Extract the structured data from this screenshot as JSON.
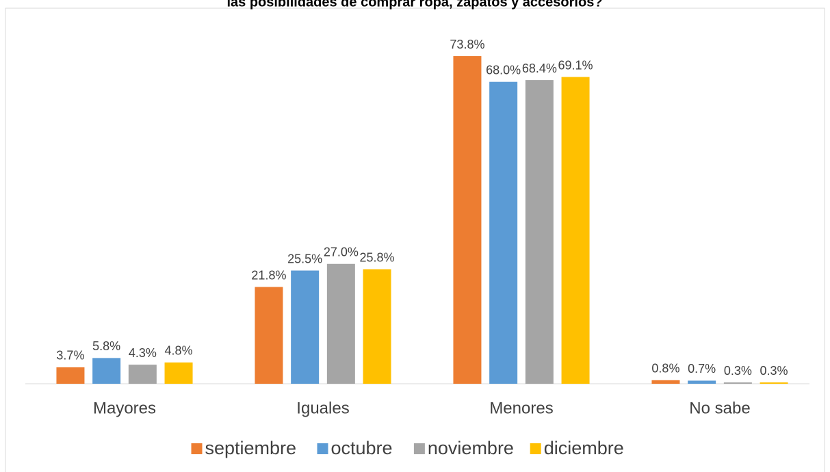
{
  "chart_data": {
    "type": "bar",
    "title": "las posibilidades de comprar ropa, zapatos y accesorios?",
    "categories": [
      "Mayores",
      "Iguales",
      "Menores",
      "No sabe"
    ],
    "series": [
      {
        "name": "septiembre",
        "color": "#ed7d31",
        "values": [
          3.7,
          21.8,
          73.8,
          0.8
        ],
        "value_labels": [
          "3.7%",
          "21.8%",
          "73.8%",
          "0.8%"
        ]
      },
      {
        "name": "octubre",
        "color": "#5b9bd5",
        "values": [
          5.8,
          25.5,
          68.0,
          0.7
        ],
        "value_labels": [
          "5.8%",
          "25.5%",
          "68.0%",
          "0.7%"
        ]
      },
      {
        "name": "noviembre",
        "color": "#a5a5a5",
        "values": [
          4.3,
          27.0,
          68.4,
          0.3
        ],
        "value_labels": [
          "4.3%",
          "27.0%",
          "68.4%",
          "0.3%"
        ]
      },
      {
        "name": "diciembre",
        "color": "#ffc000",
        "values": [
          4.8,
          25.8,
          69.1,
          0.3
        ],
        "value_labels": [
          "4.8%",
          "25.8%",
          "69.1%",
          "0.3%"
        ]
      }
    ],
    "legend": "bottom"
  }
}
